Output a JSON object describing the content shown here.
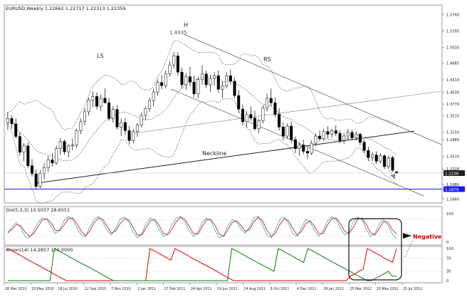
{
  "chart_data": [
    {
      "type": "candlestick",
      "header": "EURUSD,Weekly  1.22662 1.22717 1.22313 1.22359",
      "price_axis_labels": [
        "1.5760",
        "1.5395",
        "1.5035",
        "1.4685",
        "1.4310",
        "1.4030",
        "1.3770",
        "1.3515",
        "1.3150",
        "1.2980",
        "1.2610",
        "1.2328",
        "1.1980",
        "1.1879",
        "1.1660"
      ],
      "current_price_label": "1.2236",
      "support_label": "1.1879",
      "annotations": {
        "left_shoulder": "LS",
        "head": "H",
        "head_price": "1.4935",
        "right_shoulder": "RS",
        "neckline": "Neckline"
      },
      "candles": [
        {
          "o": 1.335,
          "h": 1.36,
          "l": 1.32,
          "c": 1.345
        },
        {
          "o": 1.345,
          "h": 1.352,
          "l": 1.322,
          "c": 1.333
        },
        {
          "o": 1.333,
          "h": 1.345,
          "l": 1.3,
          "c": 1.305
        },
        {
          "o": 1.305,
          "h": 1.315,
          "l": 1.262,
          "c": 1.27
        },
        {
          "o": 1.27,
          "h": 1.29,
          "l": 1.25,
          "c": 1.284
        },
        {
          "o": 1.284,
          "h": 1.292,
          "l": 1.234,
          "c": 1.24
        },
        {
          "o": 1.24,
          "h": 1.255,
          "l": 1.216,
          "c": 1.222
        },
        {
          "o": 1.222,
          "h": 1.232,
          "l": 1.188,
          "c": 1.194
        },
        {
          "o": 1.194,
          "h": 1.23,
          "l": 1.19,
          "c": 1.223
        },
        {
          "o": 1.223,
          "h": 1.245,
          "l": 1.21,
          "c": 1.236
        },
        {
          "o": 1.236,
          "h": 1.262,
          "l": 1.226,
          "c": 1.253
        },
        {
          "o": 1.253,
          "h": 1.268,
          "l": 1.238,
          "c": 1.246
        },
        {
          "o": 1.246,
          "h": 1.285,
          "l": 1.242,
          "c": 1.278
        },
        {
          "o": 1.278,
          "h": 1.302,
          "l": 1.265,
          "c": 1.294
        },
        {
          "o": 1.294,
          "h": 1.298,
          "l": 1.265,
          "c": 1.271
        },
        {
          "o": 1.271,
          "h": 1.288,
          "l": 1.258,
          "c": 1.284
        },
        {
          "o": 1.284,
          "h": 1.3,
          "l": 1.274,
          "c": 1.286
        },
        {
          "o": 1.286,
          "h": 1.322,
          "l": 1.28,
          "c": 1.318
        },
        {
          "o": 1.318,
          "h": 1.345,
          "l": 1.31,
          "c": 1.338
        },
        {
          "o": 1.338,
          "h": 1.368,
          "l": 1.33,
          "c": 1.36
        },
        {
          "o": 1.36,
          "h": 1.392,
          "l": 1.352,
          "c": 1.386
        },
        {
          "o": 1.386,
          "h": 1.405,
          "l": 1.37,
          "c": 1.394
        },
        {
          "o": 1.394,
          "h": 1.403,
          "l": 1.365,
          "c": 1.372
        },
        {
          "o": 1.372,
          "h": 1.398,
          "l": 1.362,
          "c": 1.39
        },
        {
          "o": 1.39,
          "h": 1.412,
          "l": 1.378,
          "c": 1.38
        },
        {
          "o": 1.38,
          "h": 1.39,
          "l": 1.34,
          "c": 1.345
        },
        {
          "o": 1.345,
          "h": 1.372,
          "l": 1.336,
          "c": 1.365
        },
        {
          "o": 1.365,
          "h": 1.375,
          "l": 1.32,
          "c": 1.326
        },
        {
          "o": 1.326,
          "h": 1.345,
          "l": 1.306,
          "c": 1.336
        },
        {
          "o": 1.336,
          "h": 1.347,
          "l": 1.308,
          "c": 1.318
        },
        {
          "o": 1.318,
          "h": 1.328,
          "l": 1.288,
          "c": 1.296
        },
        {
          "o": 1.296,
          "h": 1.322,
          "l": 1.29,
          "c": 1.316
        },
        {
          "o": 1.316,
          "h": 1.335,
          "l": 1.304,
          "c": 1.33
        },
        {
          "o": 1.33,
          "h": 1.358,
          "l": 1.325,
          "c": 1.352
        },
        {
          "o": 1.352,
          "h": 1.372,
          "l": 1.34,
          "c": 1.367
        },
        {
          "o": 1.367,
          "h": 1.392,
          "l": 1.36,
          "c": 1.385
        },
        {
          "o": 1.385,
          "h": 1.412,
          "l": 1.372,
          "c": 1.404
        },
        {
          "o": 1.404,
          "h": 1.432,
          "l": 1.395,
          "c": 1.425
        },
        {
          "o": 1.425,
          "h": 1.442,
          "l": 1.41,
          "c": 1.418
        },
        {
          "o": 1.418,
          "h": 1.452,
          "l": 1.412,
          "c": 1.445
        },
        {
          "o": 1.445,
          "h": 1.472,
          "l": 1.438,
          "c": 1.464
        },
        {
          "o": 1.464,
          "h": 1.493,
          "l": 1.456,
          "c": 1.484
        },
        {
          "o": 1.484,
          "h": 1.492,
          "l": 1.44,
          "c": 1.448
        },
        {
          "o": 1.448,
          "h": 1.458,
          "l": 1.412,
          "c": 1.42
        },
        {
          "o": 1.42,
          "h": 1.446,
          "l": 1.408,
          "c": 1.438
        },
        {
          "o": 1.438,
          "h": 1.46,
          "l": 1.416,
          "c": 1.426
        },
        {
          "o": 1.426,
          "h": 1.44,
          "l": 1.392,
          "c": 1.4
        },
        {
          "o": 1.4,
          "h": 1.438,
          "l": 1.39,
          "c": 1.432
        },
        {
          "o": 1.432,
          "h": 1.464,
          "l": 1.42,
          "c": 1.444
        },
        {
          "o": 1.444,
          "h": 1.452,
          "l": 1.412,
          "c": 1.42
        },
        {
          "o": 1.42,
          "h": 1.442,
          "l": 1.404,
          "c": 1.434
        },
        {
          "o": 1.434,
          "h": 1.448,
          "l": 1.418,
          "c": 1.44
        },
        {
          "o": 1.44,
          "h": 1.452,
          "l": 1.402,
          "c": 1.41
        },
        {
          "o": 1.41,
          "h": 1.428,
          "l": 1.39,
          "c": 1.418
        },
        {
          "o": 1.418,
          "h": 1.448,
          "l": 1.412,
          "c": 1.44
        },
        {
          "o": 1.44,
          "h": 1.454,
          "l": 1.42,
          "c": 1.428
        },
        {
          "o": 1.428,
          "h": 1.436,
          "l": 1.39,
          "c": 1.396
        },
        {
          "o": 1.396,
          "h": 1.408,
          "l": 1.358,
          "c": 1.366
        },
        {
          "o": 1.366,
          "h": 1.376,
          "l": 1.33,
          "c": 1.338
        },
        {
          "o": 1.338,
          "h": 1.362,
          "l": 1.326,
          "c": 1.354
        },
        {
          "o": 1.354,
          "h": 1.372,
          "l": 1.34,
          "c": 1.346
        },
        {
          "o": 1.346,
          "h": 1.362,
          "l": 1.318,
          "c": 1.322
        },
        {
          "o": 1.322,
          "h": 1.344,
          "l": 1.312,
          "c": 1.34
        },
        {
          "o": 1.34,
          "h": 1.375,
          "l": 1.334,
          "c": 1.368
        },
        {
          "o": 1.368,
          "h": 1.4,
          "l": 1.36,
          "c": 1.39
        },
        {
          "o": 1.39,
          "h": 1.412,
          "l": 1.372,
          "c": 1.38
        },
        {
          "o": 1.38,
          "h": 1.392,
          "l": 1.348,
          "c": 1.354
        },
        {
          "o": 1.354,
          "h": 1.368,
          "l": 1.318,
          "c": 1.326
        },
        {
          "o": 1.326,
          "h": 1.336,
          "l": 1.296,
          "c": 1.306
        },
        {
          "o": 1.306,
          "h": 1.334,
          "l": 1.3,
          "c": 1.328
        },
        {
          "o": 1.328,
          "h": 1.338,
          "l": 1.29,
          "c": 1.298
        },
        {
          "o": 1.298,
          "h": 1.305,
          "l": 1.268,
          "c": 1.278
        },
        {
          "o": 1.278,
          "h": 1.292,
          "l": 1.262,
          "c": 1.286
        },
        {
          "o": 1.286,
          "h": 1.298,
          "l": 1.266,
          "c": 1.272
        },
        {
          "o": 1.272,
          "h": 1.28,
          "l": 1.255,
          "c": 1.268
        },
        {
          "o": 1.268,
          "h": 1.296,
          "l": 1.264,
          "c": 1.29
        },
        {
          "o": 1.29,
          "h": 1.312,
          "l": 1.284,
          "c": 1.306
        },
        {
          "o": 1.306,
          "h": 1.318,
          "l": 1.294,
          "c": 1.3
        },
        {
          "o": 1.3,
          "h": 1.322,
          "l": 1.296,
          "c": 1.316
        },
        {
          "o": 1.316,
          "h": 1.328,
          "l": 1.3,
          "c": 1.31
        },
        {
          "o": 1.31,
          "h": 1.322,
          "l": 1.302,
          "c": 1.318
        },
        {
          "o": 1.318,
          "h": 1.33,
          "l": 1.306,
          "c": 1.312
        },
        {
          "o": 1.312,
          "h": 1.318,
          "l": 1.29,
          "c": 1.296
        },
        {
          "o": 1.296,
          "h": 1.312,
          "l": 1.288,
          "c": 1.306
        },
        {
          "o": 1.306,
          "h": 1.322,
          "l": 1.298,
          "c": 1.314
        },
        {
          "o": 1.314,
          "h": 1.32,
          "l": 1.296,
          "c": 1.302
        },
        {
          "o": 1.302,
          "h": 1.316,
          "l": 1.296,
          "c": 1.31
        },
        {
          "o": 1.31,
          "h": 1.314,
          "l": 1.286,
          "c": 1.292
        },
        {
          "o": 1.292,
          "h": 1.298,
          "l": 1.268,
          "c": 1.274
        },
        {
          "o": 1.274,
          "h": 1.282,
          "l": 1.25,
          "c": 1.258
        },
        {
          "o": 1.258,
          "h": 1.27,
          "l": 1.25,
          "c": 1.264
        },
        {
          "o": 1.264,
          "h": 1.272,
          "l": 1.244,
          "c": 1.25
        },
        {
          "o": 1.25,
          "h": 1.268,
          "l": 1.246,
          "c": 1.262
        },
        {
          "o": 1.262,
          "h": 1.266,
          "l": 1.232,
          "c": 1.238
        },
        {
          "o": 1.238,
          "h": 1.262,
          "l": 1.234,
          "c": 1.258
        },
        {
          "o": 1.258,
          "h": 1.262,
          "l": 1.226,
          "c": 1.23
        },
        {
          "o": 1.2266,
          "h": 1.2272,
          "l": 1.2231,
          "c": 1.2236
        }
      ],
      "x_labels": [
        "28 Mar 2010",
        "23 May 2010",
        "18 Jul 2010",
        "12 Sep 2010",
        "7 Nov 2010",
        "2 Jan 2011",
        "27 Feb 2011",
        "24 Apr 2011",
        "19 Jun 2011",
        "14 Aug 2011",
        "9 Oct 2011",
        "4 Dec 2011",
        "29 Jan 2012",
        "25 Mar 2012",
        "20 May 2012",
        "15 Jul 2012"
      ]
    },
    {
      "type": "line",
      "header": "Sto(5,3,3) 10.5037 28.6551",
      "axis_labels": [
        "100",
        "0"
      ],
      "series": [
        {
          "color": "#4ab3c8",
          "values": [
            30,
            55,
            70,
            50,
            20,
            15,
            40,
            70,
            85,
            80,
            55,
            30,
            45,
            75,
            90,
            80,
            50,
            25,
            20,
            55,
            80,
            90,
            70,
            40,
            25,
            50,
            80,
            88,
            70,
            35,
            15,
            30,
            65,
            85,
            75,
            45,
            20,
            30,
            60,
            85,
            90,
            70,
            40,
            20,
            35,
            70,
            85,
            75,
            40,
            15,
            25,
            60,
            80,
            70,
            45,
            30,
            55,
            85,
            90,
            60,
            25,
            15,
            45,
            80,
            88,
            65,
            30,
            20,
            50,
            80,
            70,
            40,
            20,
            40,
            75,
            90,
            80,
            50,
            25,
            35,
            70,
            88,
            80,
            45,
            20,
            30,
            65,
            80,
            60,
            30,
            10
          ]
        },
        {
          "color": "#cc2222",
          "values": [
            35,
            45,
            62,
            58,
            35,
            20,
            30,
            55,
            78,
            82,
            68,
            42,
            40,
            60,
            82,
            85,
            65,
            38,
            22,
            40,
            68,
            85,
            80,
            55,
            32,
            40,
            65,
            82,
            78,
            52,
            25,
            25,
            50,
            75,
            80,
            60,
            32,
            25,
            45,
            72,
            88,
            80,
            55,
            30,
            28,
            55,
            78,
            80,
            58,
            28,
            20,
            45,
            70,
            75,
            58,
            38,
            45,
            72,
            88,
            75,
            42,
            20,
            32,
            62,
            82,
            75,
            48,
            25,
            38,
            65,
            75,
            55,
            30,
            30,
            60,
            82,
            85,
            65,
            38,
            30,
            52,
            80,
            85,
            62,
            32,
            25,
            48,
            72,
            70,
            45,
            29
          ]
        }
      ]
    },
    {
      "type": "line",
      "header": "Aroon(14) 14.2857 100.0000",
      "axis_labels": [
        "100",
        "70",
        "30",
        "0"
      ],
      "series": [
        {
          "color": "#dd0000",
          "values": [
            100,
            93,
            86,
            79,
            71,
            64,
            57,
            50,
            43,
            36,
            29,
            21,
            14,
            7,
            0,
            0,
            0,
            0,
            0,
            0,
            0,
            0,
            0,
            0,
            0,
            0,
            0,
            0,
            0,
            0,
            0,
            0,
            0,
            0,
            100,
            93,
            86,
            79,
            71,
            64,
            100,
            93,
            86,
            79,
            71,
            64,
            57,
            50,
            43,
            36,
            29,
            21,
            14,
            7,
            0,
            0,
            0,
            0,
            0,
            0,
            0,
            0,
            0,
            0,
            0,
            0,
            0,
            0,
            0,
            0,
            0,
            0,
            0,
            0,
            0,
            0,
            0,
            0,
            0,
            0,
            0,
            0,
            14,
            21,
            29,
            36,
            100,
            93,
            86,
            79,
            71,
            64,
            57,
            100
          ]
        },
        {
          "color": "#0b7a0b",
          "values": [
            0,
            0,
            0,
            0,
            0,
            0,
            0,
            0,
            0,
            0,
            0,
            100,
            93,
            86,
            79,
            71,
            64,
            57,
            50,
            43,
            36,
            29,
            21,
            14,
            7,
            0,
            0,
            0,
            0,
            0,
            0,
            0,
            0,
            0,
            0,
            0,
            0,
            0,
            0,
            0,
            0,
            0,
            0,
            0,
            0,
            0,
            0,
            0,
            0,
            0,
            0,
            0,
            0,
            100,
            93,
            86,
            79,
            71,
            64,
            57,
            50,
            43,
            36,
            29,
            100,
            93,
            86,
            79,
            71,
            64,
            57,
            100,
            93,
            86,
            79,
            71,
            64,
            57,
            50,
            43,
            36,
            29,
            21,
            14,
            7,
            0,
            0,
            7,
            14,
            21,
            29,
            14,
            14
          ]
        }
      ]
    }
  ],
  "callout": {
    "label": "Negative",
    "color": "#dd0000"
  },
  "colors": {
    "support_line": "#1a1aff",
    "neckline": "#222222",
    "channel": "#555555",
    "bands": "#444444"
  }
}
